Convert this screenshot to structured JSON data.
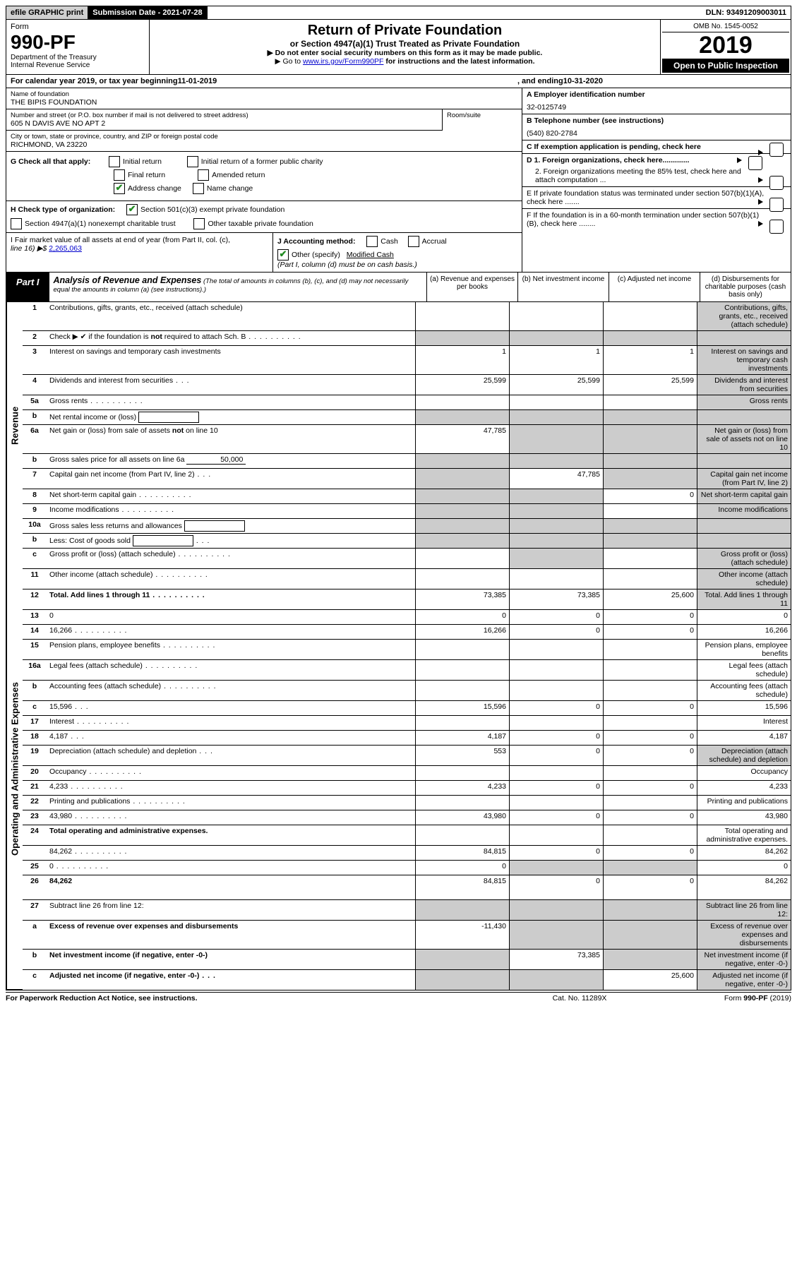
{
  "header": {
    "efile": "efile GRAPHIC print",
    "submission_label": "Submission Date - 2021-07-28",
    "dln": "DLN: 93491209003011"
  },
  "form_box": {
    "form_word": "Form",
    "form_num": "990-PF",
    "dept": "Department of the Treasury",
    "irs": "Internal Revenue Service"
  },
  "title": {
    "main": "Return of Private Foundation",
    "sub": "or Section 4947(a)(1) Trust Treated as Private Foundation",
    "warn": "▶ Do not enter social security numbers on this form as it may be made public.",
    "instr_prefix": "▶ Go to ",
    "instr_link": "www.irs.gov/Form990PF",
    "instr_suffix": " for instructions and the latest information."
  },
  "year_box": {
    "omb": "OMB No. 1545-0052",
    "year": "2019",
    "open": "Open to Public Inspection"
  },
  "calendar": {
    "prefix": "For calendar year 2019, or tax year beginning ",
    "begin": "11-01-2019",
    "mid": " , and ending ",
    "end": "10-31-2020"
  },
  "entity": {
    "name_label": "Name of foundation",
    "name": "THE BIPIS FOUNDATION",
    "addr_label": "Number and street (or P.O. box number if mail is not delivered to street address)",
    "addr": "605 N DAVIS AVE NO APT 2",
    "room_label": "Room/suite",
    "city_label": "City or town, state or province, country, and ZIP or foreign postal code",
    "city": "RICHMOND, VA  23220"
  },
  "right_info": {
    "A_label": "A Employer identification number",
    "A_val": "32-0125749",
    "B_label": "B Telephone number (see instructions)",
    "B_val": "(540) 820-2784",
    "C_label": "C If exemption application is pending, check here",
    "D1": "D 1. Foreign organizations, check here.............",
    "D2": "2. Foreign organizations meeting the 85% test, check here and attach computation ...",
    "E": "E  If private foundation status was terminated under section 507(b)(1)(A), check here .......",
    "F": "F  If the foundation is in a 60-month termination under section 507(b)(1)(B), check here ........"
  },
  "G": {
    "label": "G Check all that apply:",
    "opts": [
      "Initial return",
      "Final return",
      "Address change",
      "Initial return of a former public charity",
      "Amended return",
      "Name change"
    ]
  },
  "H": {
    "label": "H Check type of organization:",
    "opt1": "Section 501(c)(3) exempt private foundation",
    "opt2": "Section 4947(a)(1) nonexempt charitable trust",
    "opt3": "Other taxable private foundation"
  },
  "I": {
    "label": "I Fair market value of all assets at end of year (from Part II, col. (c),",
    "line16": "line 16) ▶$",
    "val": "2,265,063"
  },
  "J": {
    "label": "J Accounting method:",
    "cash": "Cash",
    "accrual": "Accrual",
    "other": "Other (specify)",
    "other_val": "Modified Cash",
    "note": "(Part I, column (d) must be on cash basis.)"
  },
  "part1": {
    "label": "Part I",
    "title": "Analysis of Revenue and Expenses",
    "note": " (The total of amounts in columns (b), (c), and (d) may not necessarily equal the amounts in column (a) (see instructions).)",
    "cols": {
      "a": "(a)   Revenue and expenses per books",
      "b": "(b)   Net investment income",
      "c": "(c)   Adjusted net income",
      "d": "(d)   Disbursements for charitable purposes (cash basis only)"
    }
  },
  "side_labels": {
    "rev": "Revenue",
    "exp": "Operating and Administrative Expenses"
  },
  "rows_rev": [
    {
      "n": "1",
      "d": "Contributions, gifts, grants, etc., received (attach schedule)",
      "a": "",
      "b": "",
      "c": "",
      "sh": [
        "",
        "",
        "",
        "s"
      ]
    },
    {
      "n": "2",
      "d": "Check ▶ ✔ if the foundation is not required to attach Sch. B",
      "dots": true,
      "nocols": true
    },
    {
      "n": "3",
      "d": "Interest on savings and temporary cash investments",
      "a": "1",
      "b": "1",
      "c": "1",
      "sh": [
        "",
        "",
        "",
        "s"
      ]
    },
    {
      "n": "4",
      "d": "Dividends and interest from securities",
      "dots": "short",
      "a": "25,599",
      "b": "25,599",
      "c": "25,599",
      "sh": [
        "",
        "",
        "",
        "s"
      ]
    },
    {
      "n": "5a",
      "d": "Gross rents",
      "dots": true,
      "a": "",
      "b": "",
      "c": "",
      "sh": [
        "",
        "",
        "",
        "s"
      ]
    },
    {
      "n": "b",
      "d": "Net rental income or (loss)",
      "box": "",
      "nocols": true
    },
    {
      "n": "6a",
      "d": "Net gain or (loss) from sale of assets not on line 10",
      "a": "47,785",
      "sh": [
        "",
        "s",
        "s",
        "s"
      ]
    },
    {
      "n": "b",
      "d": "Gross sales price for all assets on line 6a",
      "uline": "50,000",
      "nocols": true
    },
    {
      "n": "7",
      "d": "Capital gain net income (from Part IV, line 2)",
      "dots": "short",
      "b": "47,785",
      "sh": [
        "s",
        "",
        "s",
        "s"
      ]
    },
    {
      "n": "8",
      "d": "Net short-term capital gain",
      "dots": true,
      "c": "0",
      "sh": [
        "s",
        "s",
        "",
        "s"
      ]
    },
    {
      "n": "9",
      "d": "Income modifications",
      "dots": true,
      "sh": [
        "s",
        "s",
        "",
        "s"
      ]
    },
    {
      "n": "10a",
      "d": "Gross sales less returns and allowances",
      "box": "",
      "nocols": true
    },
    {
      "n": "b",
      "d": "Less: Cost of goods sold",
      "dots": "short",
      "box": "",
      "nocols": true
    },
    {
      "n": "c",
      "d": "Gross profit or (loss) (attach schedule)",
      "dots": true,
      "sh": [
        "",
        "s",
        "",
        "s"
      ]
    },
    {
      "n": "11",
      "d": "Other income (attach schedule)",
      "dots": true,
      "a": "",
      "b": "",
      "c": "",
      "sh": [
        "",
        "",
        "",
        "s"
      ]
    },
    {
      "n": "12",
      "d": "Total. Add lines 1 through 11",
      "dots": true,
      "bold": true,
      "a": "73,385",
      "b": "73,385",
      "c": "25,600",
      "sh": [
        "",
        "",
        "",
        "s"
      ]
    }
  ],
  "rows_exp": [
    {
      "n": "13",
      "d": "0",
      "a": "0",
      "b": "0",
      "c": "0"
    },
    {
      "n": "14",
      "d": "16,266",
      "dots": true,
      "a": "16,266",
      "b": "0",
      "c": "0"
    },
    {
      "n": "15",
      "d": "Pension plans, employee benefits",
      "dots": true
    },
    {
      "n": "16a",
      "d": "Legal fees (attach schedule)",
      "dots": true
    },
    {
      "n": "b",
      "d": "Accounting fees (attach schedule)",
      "dots": true
    },
    {
      "n": "c",
      "d": "15,596",
      "dots": "short",
      "a": "15,596",
      "b": "0",
      "c": "0"
    },
    {
      "n": "17",
      "d": "Interest",
      "dots": true
    },
    {
      "n": "18",
      "d": "4,187",
      "dots": "short",
      "a": "4,187",
      "b": "0",
      "c": "0"
    },
    {
      "n": "19",
      "d": "Depreciation (attach schedule) and depletion",
      "dots": "short",
      "a": "553",
      "b": "0",
      "c": "0",
      "sh": [
        "",
        "",
        "",
        "s"
      ]
    },
    {
      "n": "20",
      "d": "Occupancy",
      "dots": true
    },
    {
      "n": "21",
      "d": "4,233",
      "dots": true,
      "a": "4,233",
      "b": "0",
      "c": "0"
    },
    {
      "n": "22",
      "d": "Printing and publications",
      "dots": true
    },
    {
      "n": "23",
      "d": "43,980",
      "dots": true,
      "a": "43,980",
      "b": "0",
      "c": "0"
    },
    {
      "n": "24",
      "d": "Total operating and administrative expenses.",
      "bold": true,
      "twol": true
    },
    {
      "n": "",
      "d": "84,262",
      "dots": true,
      "a": "84,815",
      "b": "0",
      "c": "0"
    },
    {
      "n": "25",
      "d": "0",
      "dots": true,
      "a": "0",
      "sh": [
        "",
        "s",
        "s",
        ""
      ]
    },
    {
      "n": "26",
      "d": "84,262",
      "bold": true,
      "a": "84,815",
      "b": "0",
      "c": "0",
      "tall": true
    },
    {
      "n": "27",
      "d": "Subtract line 26 from line 12:",
      "sh": [
        "s",
        "s",
        "s",
        "s"
      ]
    },
    {
      "n": "a",
      "d": "Excess of revenue over expenses and disbursements",
      "bold": true,
      "a": "-11,430",
      "sh": [
        "",
        "s",
        "s",
        "s"
      ]
    },
    {
      "n": "b",
      "d": "Net investment income (if negative, enter -0-)",
      "bold": true,
      "b": "73,385",
      "sh": [
        "s",
        "",
        "s",
        "s"
      ]
    },
    {
      "n": "c",
      "d": "Adjusted net income (if negative, enter -0-)",
      "bold": true,
      "dots": "short",
      "c": "25,600",
      "sh": [
        "s",
        "s",
        "",
        "s"
      ]
    }
  ],
  "footer": {
    "left": "For Paperwork Reduction Act Notice, see instructions.",
    "mid": "Cat. No. 11289X",
    "right_prefix": "Form ",
    "right_form": "990-PF",
    "right_suffix": " (2019)"
  }
}
